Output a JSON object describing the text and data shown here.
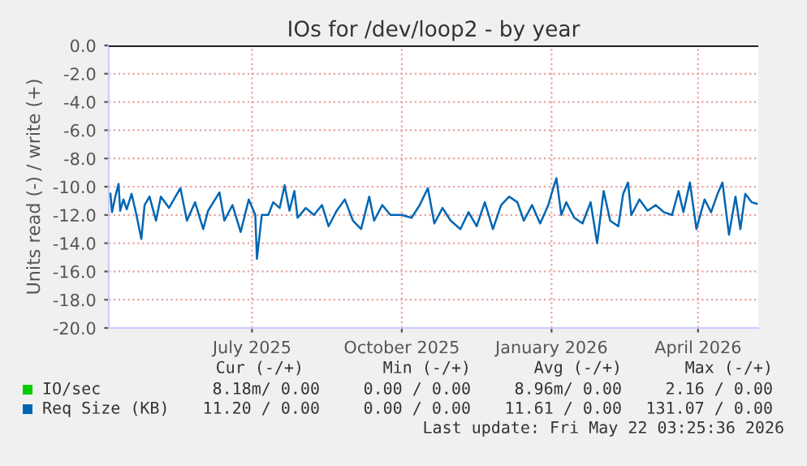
{
  "chart_data": {
    "type": "line",
    "title": "IOs for /dev/loop2 - by year",
    "ylabel": "Units read (-) / write (+)",
    "xlim": [
      "2025-04-19",
      "2026-05-23"
    ],
    "xticks": [
      {
        "value": "2025-07-16",
        "label": "July 2025"
      },
      {
        "value": "2025-10-16",
        "label": "October 2025"
      },
      {
        "value": "2026-01-16",
        "label": "January 2026"
      },
      {
        "value": "2026-04-16",
        "label": "April 2026"
      }
    ],
    "ylim": [
      -20,
      0
    ],
    "yticks": [
      {
        "value": -20,
        "label": "-20.0"
      },
      {
        "value": -18,
        "label": "-18.0"
      },
      {
        "value": -16,
        "label": "-16.0"
      },
      {
        "value": -14,
        "label": "-14.0"
      },
      {
        "value": -12,
        "label": "-12.0"
      },
      {
        "value": -10,
        "label": "-10.0"
      },
      {
        "value": -8,
        "label": "-8.0"
      },
      {
        "value": -6,
        "label": "-6.0"
      },
      {
        "value": -4,
        "label": "-4.0"
      },
      {
        "value": -2,
        "label": "-2.0"
      },
      {
        "value": 0,
        "label": "0.0"
      }
    ],
    "grid": true,
    "legend": "bottom",
    "marker": "none",
    "line_style": "solid",
    "ref_lines": [
      {
        "axis": "y",
        "value": 0,
        "color": "#000000"
      }
    ],
    "series": [
      {
        "name": "IO/sec",
        "color": "#00cc00"
      },
      {
        "name": "Req Size (KB)",
        "color": "#0066b3",
        "x": [
          "2025-04-20",
          "2025-04-21",
          "2025-04-23",
          "2025-04-25",
          "2025-04-26",
          "2025-04-28",
          "2025-04-30",
          "2025-05-03",
          "2025-05-06",
          "2025-05-09",
          "2025-05-11",
          "2025-05-14",
          "2025-05-18",
          "2025-05-21",
          "2025-05-26",
          "2025-06-02",
          "2025-06-06",
          "2025-06-11",
          "2025-06-16",
          "2025-06-19",
          "2025-06-26",
          "2025-06-29",
          "2025-07-04",
          "2025-07-09",
          "2025-07-14",
          "2025-07-18",
          "2025-07-19",
          "2025-07-22",
          "2025-07-26",
          "2025-07-29",
          "2025-08-02",
          "2025-08-05",
          "2025-08-08",
          "2025-08-11",
          "2025-08-13",
          "2025-08-18",
          "2025-08-23",
          "2025-08-28",
          "2025-09-01",
          "2025-09-06",
          "2025-09-11",
          "2025-09-16",
          "2025-09-21",
          "2025-09-26",
          "2025-09-29",
          "2025-10-04",
          "2025-10-09",
          "2025-10-16",
          "2025-10-22",
          "2025-10-27",
          "2025-11-01",
          "2025-11-05",
          "2025-11-10",
          "2025-11-15",
          "2025-11-21",
          "2025-11-26",
          "2025-12-01",
          "2025-12-06",
          "2025-12-11",
          "2025-12-16",
          "2025-12-21",
          "2025-12-26",
          "2025-12-30",
          "2026-01-04",
          "2026-01-09",
          "2026-01-14",
          "2026-01-17",
          "2026-01-19",
          "2026-01-22",
          "2026-01-25",
          "2026-01-30",
          "2026-02-04",
          "2026-02-09",
          "2026-02-13",
          "2026-02-17",
          "2026-02-21",
          "2026-02-26",
          "2026-03-01",
          "2026-03-04",
          "2026-03-06",
          "2026-03-11",
          "2026-03-16",
          "2026-03-21",
          "2026-03-26",
          "2026-03-31",
          "2026-04-04",
          "2026-04-07",
          "2026-04-11",
          "2026-04-15",
          "2026-04-20",
          "2026-04-24",
          "2026-04-28",
          "2026-05-01",
          "2026-05-05",
          "2026-05-09",
          "2026-05-12",
          "2026-05-15",
          "2026-05-19",
          "2026-05-22"
        ],
        "values": [
          -10.5,
          -11.8,
          -10.7,
          -9.8,
          -11.7,
          -10.9,
          -11.6,
          -10.5,
          -12.0,
          -13.7,
          -11.3,
          -10.7,
          -12.4,
          -10.7,
          -11.5,
          -10.1,
          -12.4,
          -11.1,
          -13.0,
          -11.7,
          -10.4,
          -12.4,
          -11.3,
          -13.2,
          -10.9,
          -12.0,
          -15.1,
          -12.0,
          -12.0,
          -11.1,
          -11.5,
          -9.9,
          -11.7,
          -10.3,
          -12.2,
          -11.5,
          -12.0,
          -11.3,
          -12.8,
          -11.7,
          -10.9,
          -12.4,
          -13.0,
          -10.7,
          -12.4,
          -11.3,
          -12.0,
          -12.0,
          -12.2,
          -11.3,
          -10.1,
          -12.6,
          -11.5,
          -12.4,
          -13.0,
          -11.8,
          -12.8,
          -11.1,
          -13.0,
          -11.3,
          -10.7,
          -11.1,
          -12.4,
          -11.3,
          -12.6,
          -11.3,
          -10.1,
          -9.4,
          -12.0,
          -11.1,
          -12.2,
          -12.6,
          -11.1,
          -14.0,
          -10.3,
          -12.4,
          -12.8,
          -10.5,
          -9.7,
          -12.0,
          -10.9,
          -11.7,
          -11.3,
          -11.8,
          -12.0,
          -10.3,
          -11.8,
          -9.7,
          -13.0,
          -10.9,
          -11.8,
          -10.5,
          -9.7,
          -13.4,
          -10.7,
          -13.0,
          -10.5,
          -11.1,
          -11.2
        ]
      }
    ],
    "annotations": [
      "Cur (-/+)",
      "Min (-/+)",
      "Avg (-/+)",
      "Max (-/+)",
      "8.18m/ 0.00",
      "0.00 / 0.00",
      "8.96m/ 0.00",
      "2.16 / 0.00",
      "11.20 / 0.00",
      "0.00 / 0.00",
      "11.61 / 0.00",
      "131.07 / 0.00",
      "Last update: Fri May 22 03:25:36 2026"
    ]
  }
}
